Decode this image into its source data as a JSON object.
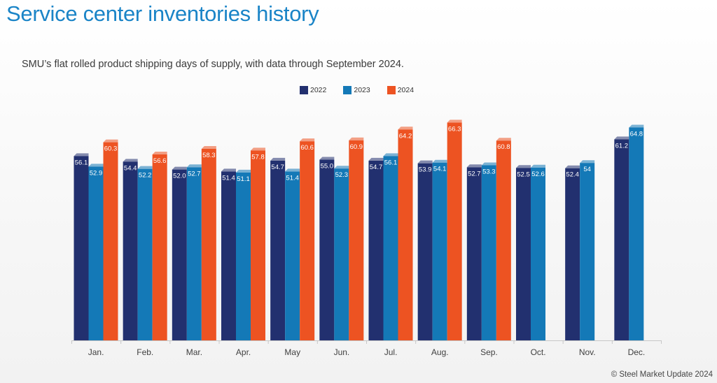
{
  "page": {
    "title": "Service center inventories history",
    "subtitle": "SMU’s flat rolled product shipping days of supply, with data through September 2024.",
    "credit": "© Steel Market Update 2024"
  },
  "colors": {
    "2022": "#22306f",
    "2023": "#1479b7",
    "2024": "#ed5322",
    "title": "#1a84c7"
  },
  "chart_data": {
    "type": "bar",
    "title": "Service center inventories history",
    "subtitle": "SMU’s flat rolled product shipping days of supply, with data through September 2024.",
    "xlabel": "",
    "ylabel": "",
    "ylim": [
      0,
      70
    ],
    "legend_position": "top-center",
    "grid": false,
    "categories": [
      "Jan.",
      "Feb.",
      "Mar.",
      "Apr.",
      "May",
      "Jun.",
      "Jul.",
      "Aug.",
      "Sep.",
      "Oct.",
      "Nov.",
      "Dec."
    ],
    "series": [
      {
        "name": "2022",
        "values": [
          56.1,
          54.4,
          52.0,
          51.4,
          54.7,
          55.0,
          54.7,
          53.9,
          52.7,
          52.5,
          52.4,
          61.2
        ],
        "labels": [
          "56.1",
          "54.4",
          "52.0",
          "51.4",
          "54.7",
          "55.0",
          "54.7",
          "53.9",
          "52.7",
          "52.5",
          "52.4",
          "61.2"
        ]
      },
      {
        "name": "2023",
        "values": [
          52.9,
          52.2,
          52.7,
          51.1,
          51.4,
          52.3,
          56.1,
          54.1,
          53.3,
          52.6,
          54,
          64.8
        ],
        "labels": [
          "52.9",
          "52.2",
          "52.7",
          "51.1",
          "51.4",
          "52.3",
          "56.1",
          "54.1",
          "53.3",
          "52.6",
          "54",
          "64.8"
        ]
      },
      {
        "name": "2024",
        "values": [
          60.3,
          56.6,
          58.3,
          57.8,
          60.6,
          60.9,
          64.2,
          66.3,
          60.8,
          null,
          null,
          null
        ],
        "labels": [
          "60.3",
          "56.6",
          "58.3",
          "57.8",
          "60.6",
          "60.9",
          "64.2",
          "66.3",
          "60.8",
          null,
          null,
          null
        ]
      }
    ]
  }
}
